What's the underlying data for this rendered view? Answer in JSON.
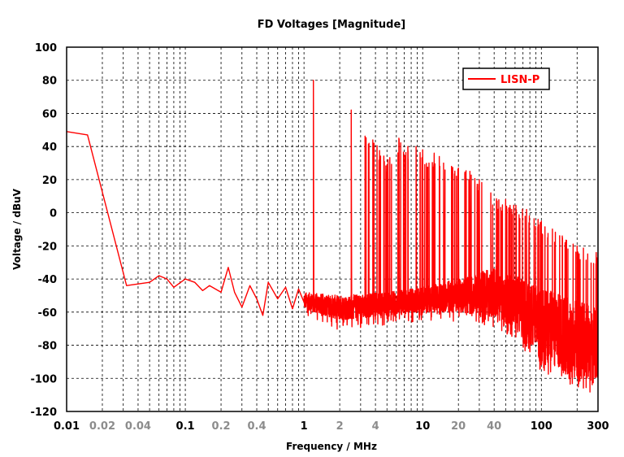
{
  "chart_data": {
    "type": "line",
    "title": "FD Voltages [Magnitude]",
    "xlabel": "Frequency / MHz",
    "ylabel": "Voltage / dBuV",
    "x_scale": "log",
    "xlim": [
      0.01,
      300
    ],
    "ylim": [
      -120,
      100
    ],
    "grid": true,
    "legend_position": "top-right",
    "x_ticks": [
      {
        "value": 0.01,
        "label": "0.01",
        "major": true
      },
      {
        "value": 0.02,
        "label": "0.02",
        "major": false
      },
      {
        "value": 0.04,
        "label": "0.04",
        "major": false
      },
      {
        "value": 0.1,
        "label": "0.1",
        "major": true
      },
      {
        "value": 0.2,
        "label": "0.2",
        "major": false
      },
      {
        "value": 0.4,
        "label": "0.4",
        "major": false
      },
      {
        "value": 1,
        "label": "1",
        "major": true
      },
      {
        "value": 2,
        "label": "2",
        "major": false
      },
      {
        "value": 4,
        "label": "4",
        "major": false
      },
      {
        "value": 10,
        "label": "10",
        "major": true
      },
      {
        "value": 20,
        "label": "20",
        "major": false
      },
      {
        "value": 40,
        "label": "40",
        "major": false
      },
      {
        "value": 100,
        "label": "100",
        "major": true
      },
      {
        "value": 300,
        "label": "300",
        "major": true
      }
    ],
    "y_ticks": [
      100,
      80,
      60,
      40,
      20,
      0,
      -20,
      -40,
      -60,
      -80,
      -100,
      -120
    ],
    "series": [
      {
        "name": "LISN-P",
        "color": "#ff0000",
        "envelope": {
          "low_freq_points": [
            [
              0.01,
              49
            ],
            [
              0.015,
              47
            ],
            [
              0.032,
              -44
            ],
            [
              0.04,
              -43
            ],
            [
              0.05,
              -42
            ],
            [
              0.06,
              -38
            ],
            [
              0.07,
              -40
            ],
            [
              0.08,
              -45
            ],
            [
              0.1,
              -40
            ],
            [
              0.12,
              -42
            ],
            [
              0.14,
              -47
            ],
            [
              0.16,
              -44
            ],
            [
              0.2,
              -48
            ],
            [
              0.23,
              -33
            ],
            [
              0.26,
              -48
            ],
            [
              0.3,
              -57
            ],
            [
              0.35,
              -44
            ],
            [
              0.4,
              -52
            ],
            [
              0.45,
              -62
            ],
            [
              0.5,
              -42
            ],
            [
              0.6,
              -52
            ],
            [
              0.7,
              -45
            ],
            [
              0.8,
              -58
            ],
            [
              0.9,
              -46
            ],
            [
              1.0,
              -54
            ]
          ],
          "peaks": [
            [
              1.2,
              80
            ],
            [
              2.5,
              62
            ],
            [
              3.8,
              44
            ],
            [
              5.1,
              32
            ],
            [
              6.3,
              45
            ],
            [
              7.5,
              40
            ],
            [
              8.8,
              40
            ],
            [
              10.0,
              38
            ],
            [
              11.3,
              30
            ],
            [
              12.5,
              36
            ],
            [
              13.8,
              34
            ],
            [
              15.0,
              30
            ],
            [
              17.5,
              28
            ],
            [
              20.0,
              27
            ],
            [
              25.0,
              25
            ],
            [
              30.0,
              20
            ],
            [
              37.5,
              12
            ],
            [
              50.0,
              8
            ],
            [
              75.0,
              2
            ],
            [
              100.0,
              -5
            ],
            [
              150.0,
              -14
            ],
            [
              200.0,
              -20
            ],
            [
              300.0,
              -24
            ]
          ],
          "floor_high": [
            [
              1.0,
              -48
            ],
            [
              2.0,
              -50
            ],
            [
              5.0,
              -48
            ],
            [
              10.0,
              -45
            ],
            [
              20.0,
              -40
            ],
            [
              40.0,
              -32
            ],
            [
              60.0,
              -38
            ],
            [
              100.0,
              -45
            ],
            [
              200.0,
              -52
            ],
            [
              300.0,
              -58
            ]
          ],
          "floor_low": [
            [
              1.0,
              -58
            ],
            [
              2.0,
              -65
            ],
            [
              5.0,
              -62
            ],
            [
              10.0,
              -60
            ],
            [
              20.0,
              -60
            ],
            [
              40.0,
              -63
            ],
            [
              60.0,
              -70
            ],
            [
              100.0,
              -90
            ],
            [
              150.0,
              -95
            ],
            [
              200.0,
              -100
            ],
            [
              300.0,
              -106
            ]
          ]
        }
      }
    ]
  }
}
